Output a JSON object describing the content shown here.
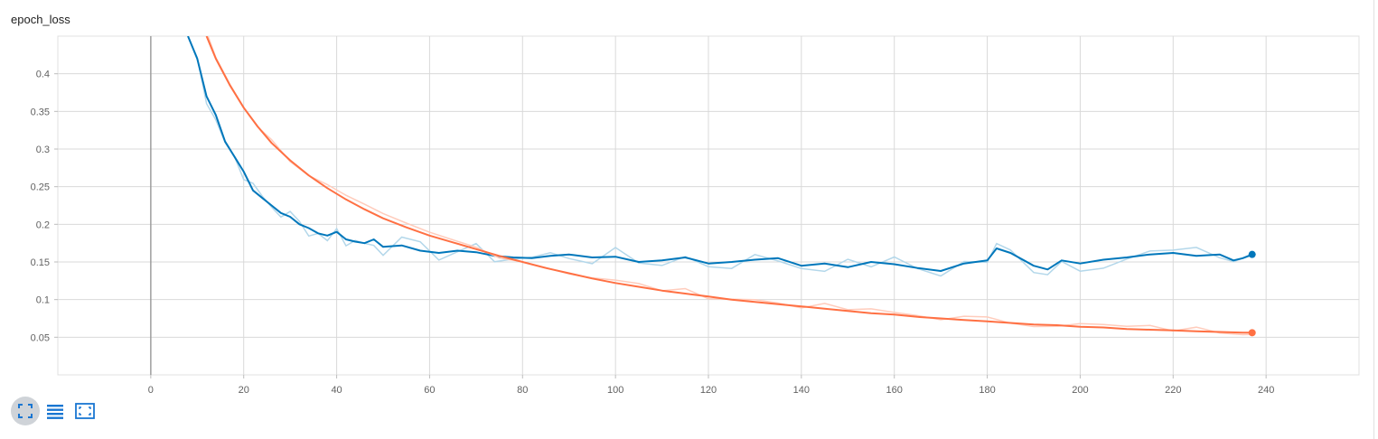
{
  "card": {
    "title": "epoch_loss"
  },
  "toolbar": {
    "items": [
      {
        "icon": "fit-domain-icon",
        "active": true
      },
      {
        "icon": "data-table-icon",
        "active": false
      },
      {
        "icon": "expand-icon",
        "active": false
      }
    ]
  },
  "colors": {
    "train": "#ff7043",
    "train_raw": "#ffccbc",
    "validation": "#0077bb",
    "validation_raw": "#b3d7ea",
    "grid": "#d9d9d9",
    "zero_axis": "#9e9e9e",
    "tick_text": "#616161"
  },
  "chart_data": {
    "type": "line",
    "title": "epoch_loss",
    "xlabel": "",
    "ylabel": "",
    "xlim": [
      -20,
      260
    ],
    "ylim": [
      0,
      0.45
    ],
    "x_ticks": [
      0,
      20,
      40,
      60,
      80,
      100,
      120,
      140,
      160,
      180,
      200,
      220,
      240
    ],
    "x_tick_labels": [
      "0",
      "20",
      "40",
      "60",
      "80",
      "100",
      "120",
      "140",
      "160",
      "180",
      "200",
      "220",
      "240"
    ],
    "y_ticks": [
      0.05,
      0.1,
      0.15,
      0.2,
      0.25,
      0.3,
      0.35,
      0.4
    ],
    "y_tick_labels": [
      "0.05",
      "0.1",
      "0.15",
      "0.2",
      "0.25",
      "0.3",
      "0.35",
      "0.4"
    ],
    "grid": true,
    "smoothing_overlay": true,
    "x_last": 237,
    "series": [
      {
        "key": "validation",
        "points": [
          [
            8,
            0.45
          ],
          [
            10,
            0.42
          ],
          [
            12,
            0.37
          ],
          [
            14,
            0.345
          ],
          [
            16,
            0.31
          ],
          [
            18,
            0.29
          ],
          [
            20,
            0.27
          ],
          [
            22,
            0.245
          ],
          [
            24,
            0.235
          ],
          [
            26,
            0.225
          ],
          [
            28,
            0.215
          ],
          [
            30,
            0.21
          ],
          [
            32,
            0.2
          ],
          [
            34,
            0.195
          ],
          [
            36,
            0.188
          ],
          [
            38,
            0.185
          ],
          [
            40,
            0.19
          ],
          [
            42,
            0.18
          ],
          [
            44,
            0.177
          ],
          [
            46,
            0.175
          ],
          [
            48,
            0.18
          ],
          [
            50,
            0.17
          ],
          [
            54,
            0.172
          ],
          [
            58,
            0.165
          ],
          [
            62,
            0.162
          ],
          [
            66,
            0.165
          ],
          [
            70,
            0.163
          ],
          [
            74,
            0.158
          ],
          [
            78,
            0.156
          ],
          [
            82,
            0.155
          ],
          [
            86,
            0.158
          ],
          [
            90,
            0.16
          ],
          [
            95,
            0.156
          ],
          [
            100,
            0.157
          ],
          [
            105,
            0.15
          ],
          [
            110,
            0.152
          ],
          [
            115,
            0.156
          ],
          [
            120,
            0.148
          ],
          [
            125,
            0.15
          ],
          [
            130,
            0.153
          ],
          [
            135,
            0.155
          ],
          [
            140,
            0.145
          ],
          [
            145,
            0.148
          ],
          [
            150,
            0.143
          ],
          [
            155,
            0.15
          ],
          [
            160,
            0.147
          ],
          [
            165,
            0.142
          ],
          [
            170,
            0.138
          ],
          [
            175,
            0.148
          ],
          [
            180,
            0.152
          ],
          [
            182,
            0.168
          ],
          [
            185,
            0.162
          ],
          [
            190,
            0.145
          ],
          [
            193,
            0.14
          ],
          [
            196,
            0.152
          ],
          [
            200,
            0.148
          ],
          [
            205,
            0.153
          ],
          [
            210,
            0.156
          ],
          [
            215,
            0.16
          ],
          [
            220,
            0.162
          ],
          [
            225,
            0.158
          ],
          [
            230,
            0.16
          ],
          [
            233,
            0.152
          ],
          [
            235,
            0.155
          ],
          [
            237,
            0.16
          ]
        ],
        "last_value": 0.16
      },
      {
        "key": "train",
        "points": [
          [
            12,
            0.45
          ],
          [
            14,
            0.42
          ],
          [
            17,
            0.385
          ],
          [
            20,
            0.355
          ],
          [
            23,
            0.33
          ],
          [
            26,
            0.308
          ],
          [
            30,
            0.285
          ],
          [
            34,
            0.265
          ],
          [
            38,
            0.248
          ],
          [
            42,
            0.233
          ],
          [
            46,
            0.22
          ],
          [
            50,
            0.208
          ],
          [
            55,
            0.196
          ],
          [
            60,
            0.185
          ],
          [
            65,
            0.176
          ],
          [
            70,
            0.167
          ],
          [
            75,
            0.158
          ],
          [
            80,
            0.15
          ],
          [
            85,
            0.142
          ],
          [
            90,
            0.135
          ],
          [
            95,
            0.128
          ],
          [
            100,
            0.122
          ],
          [
            105,
            0.117
          ],
          [
            110,
            0.112
          ],
          [
            115,
            0.108
          ],
          [
            120,
            0.104
          ],
          [
            125,
            0.1
          ],
          [
            130,
            0.097
          ],
          [
            135,
            0.094
          ],
          [
            140,
            0.091
          ],
          [
            145,
            0.088
          ],
          [
            150,
            0.085
          ],
          [
            155,
            0.082
          ],
          [
            160,
            0.08
          ],
          [
            165,
            0.077
          ],
          [
            170,
            0.075
          ],
          [
            175,
            0.073
          ],
          [
            180,
            0.071
          ],
          [
            185,
            0.069
          ],
          [
            190,
            0.067
          ],
          [
            195,
            0.066
          ],
          [
            200,
            0.064
          ],
          [
            205,
            0.063
          ],
          [
            210,
            0.061
          ],
          [
            215,
            0.06
          ],
          [
            220,
            0.059
          ],
          [
            225,
            0.058
          ],
          [
            230,
            0.057
          ],
          [
            235,
            0.056
          ],
          [
            237,
            0.056
          ]
        ],
        "last_value": 0.056
      }
    ]
  }
}
